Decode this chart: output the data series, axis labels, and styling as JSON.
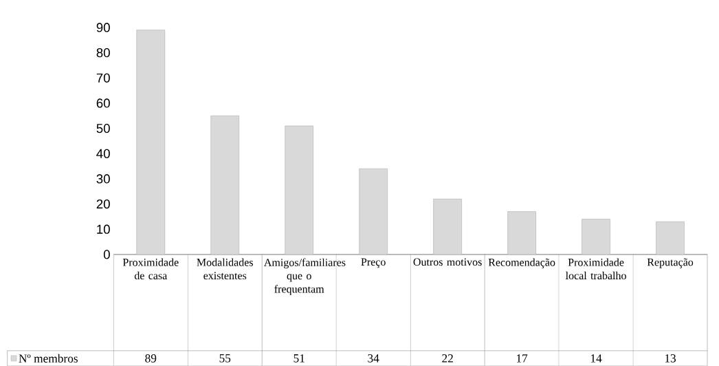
{
  "chart_data": {
    "type": "bar",
    "categories": [
      "Proximidade de casa",
      "Modalidades existentes",
      "Amigos/familiares que o frequentam",
      "Preço",
      "Outros motivos",
      "Recomendação",
      "Proximidade local trabalho",
      "Reputação"
    ],
    "series": [
      {
        "name": "Nº membros",
        "color": "#d9d9d9",
        "values": [
          89,
          55,
          51,
          34,
          22,
          17,
          14,
          13
        ]
      }
    ],
    "ylim": [
      0,
      90
    ],
    "yticks": [
      0,
      10,
      20,
      30,
      40,
      50,
      60,
      70,
      80,
      90
    ],
    "data_labels": true,
    "legend": "bottom",
    "grid": false
  }
}
